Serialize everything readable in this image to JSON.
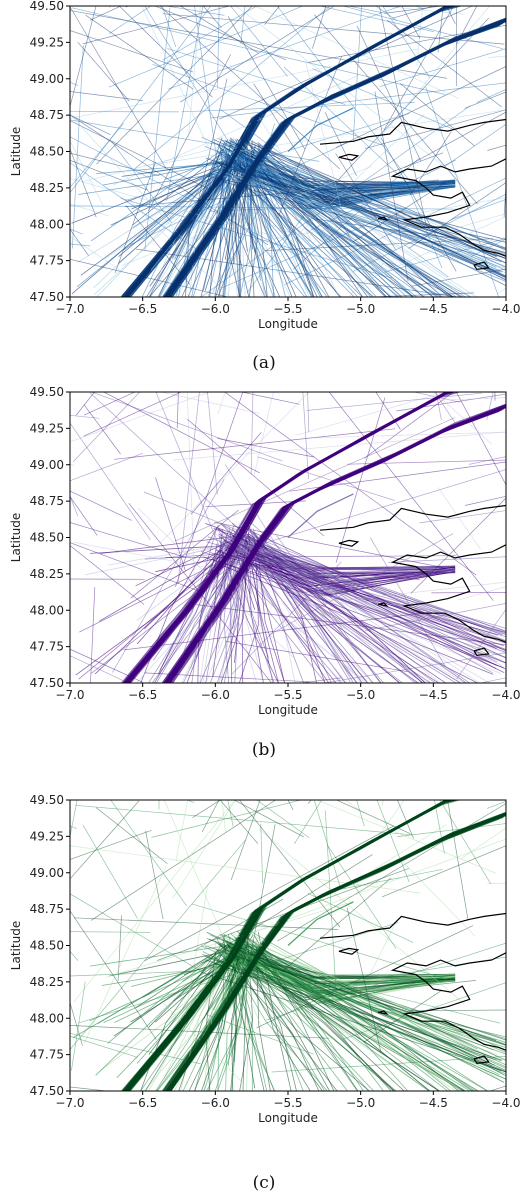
{
  "chart_data": [
    {
      "type": "line",
      "caption": "(a)",
      "xlabel": "Longitude",
      "ylabel": "Latitude",
      "xlim": [
        -7.0,
        -4.0
      ],
      "ylim": [
        47.5,
        49.5
      ],
      "xticks": [
        "−7.0",
        "−6.5",
        "−6.0",
        "−5.5",
        "−5.0",
        "−4.5",
        "−4.0"
      ],
      "yticks": [
        "47.50",
        "47.75",
        "48.00",
        "48.25",
        "48.50",
        "48.75",
        "49.00",
        "49.25",
        "49.50"
      ],
      "grid": false,
      "colors": {
        "dark": "#08306b",
        "mid": "#2171b5",
        "light": "#9ecae1"
      }
    },
    {
      "type": "line",
      "caption": "(b)",
      "xlabel": "Longitude",
      "ylabel": "Latitude",
      "xlim": [
        -7.0,
        -4.0
      ],
      "ylim": [
        47.5,
        49.5
      ],
      "xticks": [
        "−7.0",
        "−6.5",
        "−6.0",
        "−5.5",
        "−5.0",
        "−4.5",
        "−4.0"
      ],
      "yticks": [
        "47.50",
        "47.75",
        "48.00",
        "48.25",
        "48.50",
        "48.75",
        "49.00",
        "49.25",
        "49.50"
      ],
      "grid": false,
      "colors": {
        "dark": "#3f007d",
        "mid": "#6a51a3",
        "light": "#bcbddc"
      }
    },
    {
      "type": "line",
      "caption": "(c)",
      "xlabel": "Longitude",
      "ylabel": "Latitude",
      "xlim": [
        -7.0,
        -4.0
      ],
      "ylim": [
        47.5,
        49.5
      ],
      "xticks": [
        "−7.0",
        "−6.5",
        "−6.0",
        "−5.5",
        "−5.0",
        "−4.5",
        "−4.0"
      ],
      "yticks": [
        "47.50",
        "47.75",
        "48.00",
        "48.25",
        "48.50",
        "48.75",
        "49.00",
        "49.25",
        "49.50"
      ],
      "grid": false,
      "colors": {
        "dark": "#00441b",
        "mid": "#238b45",
        "light": "#a1d99b"
      }
    }
  ]
}
